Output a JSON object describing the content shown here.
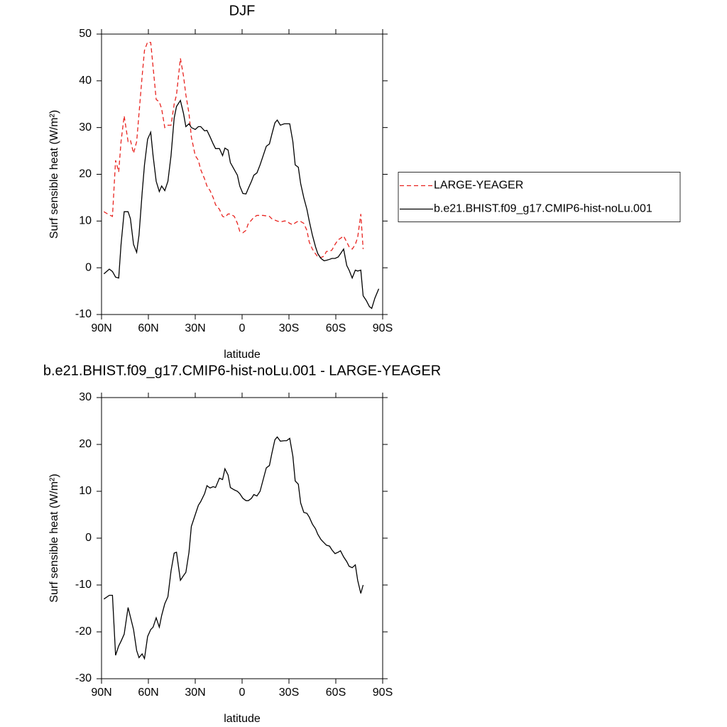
{
  "chart_data": [
    {
      "type": "line",
      "title": "DJF",
      "xlabel": "latitude",
      "ylabel": "Surf sensible heat (W/m²)",
      "x": [
        88.5,
        85,
        83,
        81,
        79,
        77.5,
        75.5,
        73,
        71.5,
        69.5,
        67.5,
        66,
        64,
        62.5,
        60.5,
        58.5,
        57,
        55,
        53,
        51.5,
        49.5,
        47.5,
        45.5,
        43.5,
        42,
        39.5,
        37.5,
        36,
        34,
        32.5,
        30,
        28,
        26.5,
        24,
        22.5,
        20.5,
        18.5,
        17,
        14.5,
        12.5,
        11,
        9,
        7.5,
        5,
        3,
        1.5,
        -0.5,
        -2.5,
        -4,
        -6,
        -7.5,
        -9.5,
        -11.5,
        -13.5,
        -15.5,
        -17.5,
        -19,
        -21,
        -22.5,
        -24.5,
        -27,
        -28.5,
        -30.5,
        -32.5,
        -34,
        -36,
        -37.5,
        -39.5,
        -41.5,
        -43,
        -45,
        -47,
        -48.5,
        -50.5,
        -52.5,
        -54,
        -56,
        -57.5,
        -59.5,
        -61.5,
        -63,
        -65,
        -67,
        -68.5,
        -70.5,
        -72.5,
        -74,
        -76,
        -77.5,
        -79.5,
        -81.5,
        -83,
        -85,
        -87.5
      ],
      "series": [
        {
          "name": "LARGE-YEAGER",
          "color": "#e8231f",
          "dash": "dashed",
          "values": [
            12,
            11.3,
            11,
            23,
            20.5,
            27,
            32.5,
            27,
            27.3,
            24.5,
            27,
            33,
            41,
            46.5,
            48.3,
            48.2,
            43,
            36,
            35.5,
            34,
            30,
            30.5,
            30.5,
            35,
            37,
            44.8,
            41,
            37,
            33,
            28,
            24,
            23,
            21,
            19,
            17.5,
            16.5,
            15,
            13.5,
            12.5,
            11,
            10.8,
            11.5,
            11.5,
            11,
            9.5,
            7.8,
            7.5,
            8,
            9.5,
            10.2,
            10.8,
            11.2,
            11.2,
            11.2,
            11.1,
            11,
            10.5,
            10.2,
            10,
            9.8,
            10,
            10,
            9.5,
            9.2,
            9.6,
            10,
            9.9,
            9.5,
            8,
            5.5,
            4,
            3,
            2.3,
            2.2,
            2.5,
            3.5,
            3.5,
            3.8,
            5,
            6,
            6.3,
            6.8,
            5.5,
            4.5,
            4,
            5,
            6.5,
            11.5,
            4,
            null,
            null,
            null,
            null,
            null
          ]
        },
        {
          "name": "b.e21.BHIST.f09_g17.CMIP6-hist-noLu.001",
          "color": "#000000",
          "dash": "solid",
          "values": [
            -1.3,
            -0.3,
            -0.8,
            -2,
            -2.2,
            5,
            12,
            12,
            10.5,
            5,
            3.3,
            7,
            16,
            22,
            27.5,
            29,
            24,
            18.5,
            16.3,
            17.5,
            16.5,
            18.5,
            24,
            32,
            34.5,
            35.8,
            33,
            30.2,
            30.8,
            30,
            29.6,
            30.2,
            30.2,
            29.3,
            29.4,
            28,
            26.5,
            25.5,
            25.5,
            24,
            25.6,
            25.2,
            22.5,
            21,
            19.8,
            17.5,
            15.9,
            15.8,
            17,
            18.5,
            19.8,
            20.3,
            22,
            24,
            26,
            26.5,
            28.5,
            31,
            31.6,
            30.5,
            30.8,
            30.8,
            30.8,
            27,
            22,
            21.5,
            18,
            15,
            12.5,
            10,
            7,
            4.5,
            3,
            2,
            1.5,
            1.6,
            1.8,
            2,
            2,
            2.3,
            3,
            4,
            0.5,
            -0.5,
            -2.2,
            -0.5,
            -0.7,
            -0.5,
            -6,
            -7,
            -8.3,
            -8.7,
            -6.5,
            -4.5
          ]
        }
      ],
      "xlim": [
        90,
        -90
      ],
      "ylim": [
        -10,
        50
      ],
      "xticks": [
        {
          "value": 90,
          "label": "90N"
        },
        {
          "value": 60,
          "label": "60N"
        },
        {
          "value": 30,
          "label": "30N"
        },
        0,
        {
          "value": -30,
          "label": "30S"
        },
        {
          "value": -60,
          "label": "60S"
        },
        {
          "value": -90,
          "label": "90S"
        }
      ],
      "yticks": [
        -10,
        0,
        10,
        20,
        30,
        40,
        50
      ],
      "legend": "right"
    },
    {
      "type": "line",
      "title": "b.e21.BHIST.f09_g17.CMIP6-hist-noLu.001 - LARGE-YEAGER",
      "xlabel": "latitude",
      "ylabel": "Surf sensible heat (W/m²)",
      "x": [
        88.5,
        85,
        83,
        81,
        79,
        77.5,
        75.5,
        73,
        71.5,
        69.5,
        67.5,
        66,
        64,
        62.5,
        60.5,
        58.5,
        57,
        55,
        53,
        51.5,
        49.5,
        47.5,
        45.5,
        43.5,
        42,
        39.5,
        37.5,
        36,
        34,
        32.5,
        30,
        28,
        26.5,
        24,
        22.5,
        20.5,
        18.5,
        17,
        14.5,
        12.5,
        11,
        9,
        7.5,
        5,
        3,
        1.5,
        -0.5,
        -2.5,
        -4,
        -6,
        -7.5,
        -9.5,
        -11.5,
        -13.5,
        -15.5,
        -17.5,
        -19,
        -21,
        -22.5,
        -24.5,
        -27,
        -28.5,
        -30.5,
        -32.5,
        -34,
        -36,
        -37.5,
        -39.5,
        -41.5,
        -43,
        -45,
        -47,
        -48.5,
        -50.5,
        -52.5,
        -54,
        -56,
        -57.5,
        -59.5,
        -61.5,
        -63,
        -65,
        -67,
        -68.5,
        -70.5,
        -72.5,
        -74,
        -76,
        -77.5,
        -79.5,
        -81.5,
        -83,
        -85,
        -87.5
      ],
      "series": [
        {
          "color": "#000000",
          "dash": "solid",
          "values": [
            -13,
            -12.2,
            -12.2,
            -25,
            -23,
            -22,
            -20.5,
            -14.8,
            -16.8,
            -19.5,
            -24,
            -25.5,
            -24.7,
            -25.7,
            -21,
            -19.5,
            -19,
            -17,
            -19,
            -16.5,
            -14,
            -12.5,
            -7,
            -3.2,
            -3,
            -9,
            -8,
            -7.3,
            -3,
            2.5,
            5,
            7,
            7.8,
            9.5,
            11.2,
            10.7,
            11,
            10.8,
            12.8,
            12.5,
            14.8,
            13.5,
            10.8,
            10.3,
            10,
            9.5,
            8.5,
            8,
            8,
            8.5,
            9.3,
            9,
            10,
            12.5,
            15,
            15.5,
            18,
            21,
            21.6,
            20.7,
            20.8,
            20.8,
            21.3,
            17.5,
            12.2,
            11.5,
            7.5,
            5.5,
            5.3,
            4.5,
            3,
            2,
            0.8,
            -0.3,
            -1,
            -1.5,
            -1.7,
            -2.5,
            -3.3,
            -3,
            -2.7,
            -4,
            -5,
            -6,
            -6.3,
            -5.7,
            -9,
            -11.8,
            -10,
            null,
            null,
            null,
            null,
            null
          ]
        }
      ],
      "xlim": [
        90,
        -90
      ],
      "ylim": [
        -30,
        30
      ],
      "xticks": [
        {
          "value": 90,
          "label": "90N"
        },
        {
          "value": 60,
          "label": "60N"
        },
        {
          "value": 30,
          "label": "30N"
        },
        0,
        {
          "value": -30,
          "label": "30S"
        },
        {
          "value": -60,
          "label": "60S"
        },
        {
          "value": -90,
          "label": "90S"
        }
      ],
      "yticks": [
        -30,
        -20,
        -10,
        0,
        10,
        20,
        30
      ]
    }
  ]
}
